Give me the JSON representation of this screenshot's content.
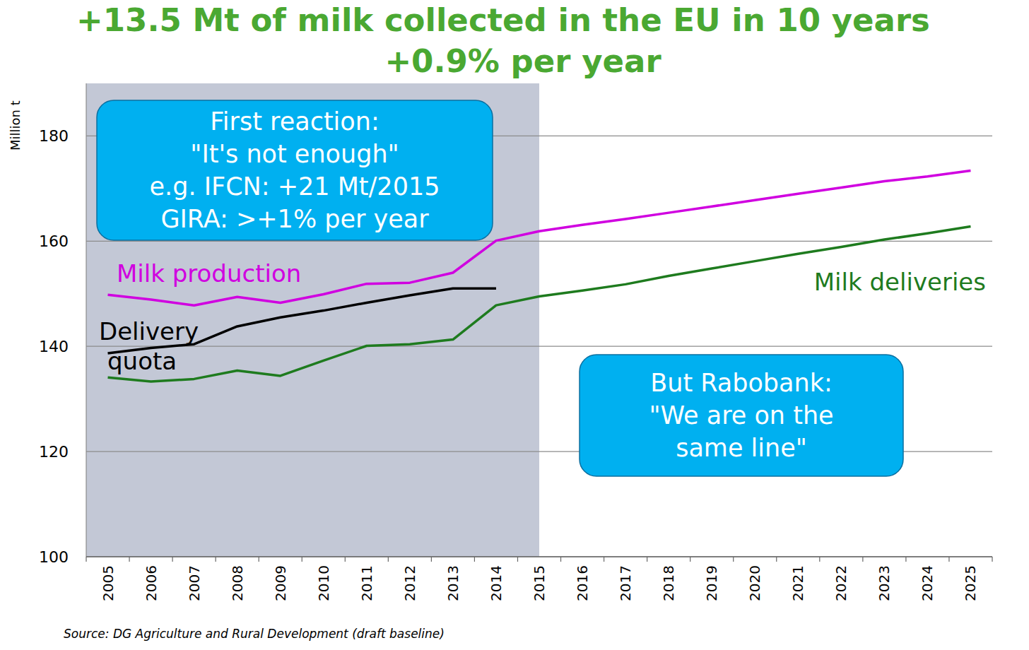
{
  "chart_data": {
    "type": "line",
    "title": "+13.5 Mt of milk collected in the EU in 10 years",
    "subtitle": "+0.9% per year",
    "y_label": "Million t",
    "source": "Source: DG Agriculture and Rural Development (draft baseline)",
    "categories": [
      "2005",
      "2006",
      "2007",
      "2008",
      "2009",
      "2010",
      "2011",
      "2012",
      "2013",
      "2014",
      "2015",
      "2016",
      "2017",
      "2018",
      "2019",
      "2020",
      "2021",
      "2022",
      "2023",
      "2024",
      "2025"
    ],
    "shaded_until": "2015",
    "series": [
      {
        "name": "Milk production",
        "color": "#d000e0",
        "values": [
          149.8,
          148.9,
          147.8,
          149.4,
          148.3,
          149.9,
          151.9,
          152.1,
          154.0,
          160.1,
          161.9,
          163.1,
          164.2,
          165.4,
          166.6,
          167.8,
          169.0,
          170.2,
          171.4,
          172.3,
          173.4
        ]
      },
      {
        "name": "Delivery quota",
        "color": "#000000",
        "values": [
          138.7,
          139.7,
          140.4,
          143.8,
          145.5,
          146.8,
          148.3,
          149.7,
          151.0,
          151.0,
          null,
          null,
          null,
          null,
          null,
          null,
          null,
          null,
          null,
          null,
          null
        ]
      },
      {
        "name": "Milk deliveries",
        "color": "#1e7b1e",
        "values": [
          134.1,
          133.3,
          133.8,
          135.4,
          134.4,
          137.3,
          140.1,
          140.4,
          141.3,
          147.8,
          149.5,
          150.6,
          151.8,
          153.4,
          154.8,
          156.2,
          157.6,
          158.9,
          160.3,
          161.5,
          162.8
        ]
      }
    ],
    "annotations": [
      {
        "lines": [
          "First reaction:",
          "\"It's not enough\"",
          "e.g. IFCN: +21 Mt/2015",
          "GIRA: >+1% per year"
        ]
      },
      {
        "lines": [
          "But Rabobank:",
          "\"We are on the",
          "same line\""
        ]
      }
    ],
    "ylim": [
      100,
      190
    ],
    "yticks": [
      100,
      120,
      140,
      160,
      180
    ],
    "grid": true
  }
}
